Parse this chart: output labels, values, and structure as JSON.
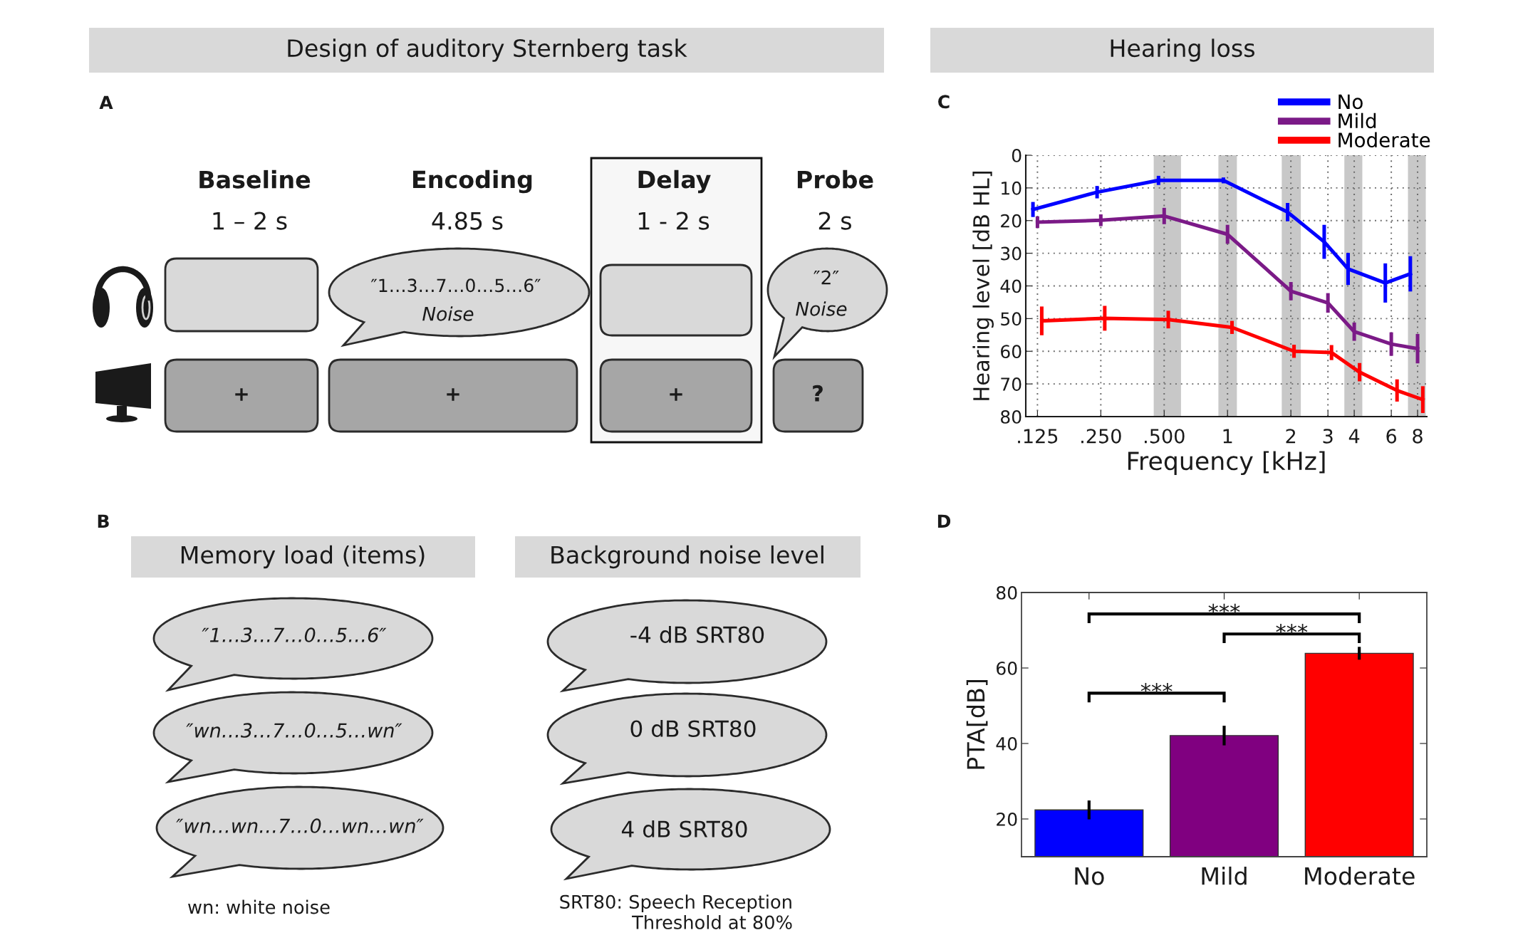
{
  "chart_data": [
    {
      "type": "other",
      "title": "Design of auditory Sternberg task",
      "annotations": [
        "A",
        "Baseline",
        "Encoding",
        "Delay",
        "Probe",
        "1 – 2 s",
        "4.85 s",
        "1 - 2 s",
        "2 s",
        "″1…3…7…0…5…6″",
        "Noise",
        "″2″",
        "Noise",
        "+",
        "+",
        "+",
        "?"
      ]
    },
    {
      "type": "other",
      "annotations": [
        "B",
        "Memory load (items)",
        "Background noise level",
        "″1…3…7…0…5…6″",
        "-4 dB SRT80",
        "″wn…3…7…0…5…wn″",
        "0 dB SRT80",
        "″wn…wn…7…0…wn…wn″",
        "4 dB SRT80",
        "wn: white noise",
        "SRT80: Speech Reception\nThreshold at 80%"
      ]
    },
    {
      "type": "line",
      "title": "Hearing loss",
      "xlabel": "Frequency [kHz]",
      "ylabel": "Hearing level [dB HL]",
      "annotations": [
        "C"
      ],
      "log": "x",
      "xlim": [
        0.11,
        8.85
      ],
      "ylim": [
        80,
        0
      ],
      "xticks": [
        {
          "value": 0.125,
          "label": ".125"
        },
        {
          "value": 0.25,
          "label": ".250"
        },
        {
          "value": 0.5,
          "label": ".500"
        },
        1,
        2,
        3,
        4,
        6,
        8
      ],
      "yticks": [
        0,
        10,
        20,
        30,
        40,
        50,
        60,
        70,
        80
      ],
      "grid": true,
      "legend": "top right",
      "line_style": "solid",
      "bands": [
        {
          "axis": "x",
          "from": 0.446,
          "to": 0.601,
          "color": "#c8c8c8"
        },
        {
          "axis": "x",
          "from": 0.905,
          "to": 1.108,
          "color": "#c8c8c8"
        },
        {
          "axis": "x",
          "from": 1.81,
          "to": 2.23,
          "color": "#c8c8c8"
        },
        {
          "axis": "x",
          "from": 3.59,
          "to": 4.37,
          "color": "#c8c8c8"
        },
        {
          "axis": "x",
          "from": 7.2,
          "to": 8.75,
          "color": "#c8c8c8"
        }
      ],
      "series": [
        {
          "name": "No",
          "color": "#0000ff",
          "x": [
            0.119,
            0.24,
            0.47,
            0.956,
            1.93,
            2.88,
            3.74,
            5.62,
            7.39
          ],
          "values": [
            16.6,
            11.3,
            7.7,
            7.7,
            17.4,
            26.5,
            34.8,
            39.1,
            36.3
          ],
          "errors": [
            2.3,
            1.9,
            1.4,
            0.9,
            2.8,
            5.2,
            4.9,
            6.0,
            5.4
          ]
        },
        {
          "name": "Mild",
          "color": "#7b1a87",
          "x": [
            0.125,
            0.25,
            0.5,
            1,
            2,
            3,
            4,
            6,
            8
          ],
          "values": [
            20.5,
            19.9,
            18.6,
            24.2,
            41.6,
            45.2,
            54.0,
            57.8,
            59.2
          ],
          "errors": [
            1.8,
            1.8,
            2.5,
            2.9,
            2.8,
            3.0,
            2.8,
            3.6,
            4.5
          ]
        },
        {
          "name": "Moderate",
          "color": "#ff0000",
          "x": [
            0.131,
            0.261,
            0.523,
            1.05,
            2.07,
            3.12,
            4.24,
            6.39,
            8.47
          ],
          "values": [
            50.7,
            49.9,
            50.3,
            52.7,
            60.0,
            60.4,
            66.4,
            72.0,
            74.8
          ],
          "errors": [
            4.4,
            3.8,
            2.7,
            2.0,
            2.0,
            2.3,
            2.8,
            3.4,
            4.1
          ]
        }
      ]
    },
    {
      "type": "bar",
      "ylabel": "PTA[dB]",
      "annotations": [
        "D",
        "***",
        "***",
        "***"
      ],
      "categories": [
        "No",
        "Mild",
        "Moderate"
      ],
      "values": [
        22.4,
        42.1,
        63.9
      ],
      "colors": [
        "#0000ff",
        "#800080",
        "#ff0000"
      ],
      "errors": [
        2.5,
        2.6,
        1.7
      ],
      "ylim": [
        10,
        80
      ],
      "yticks": [
        20,
        40,
        60,
        80
      ]
    }
  ]
}
